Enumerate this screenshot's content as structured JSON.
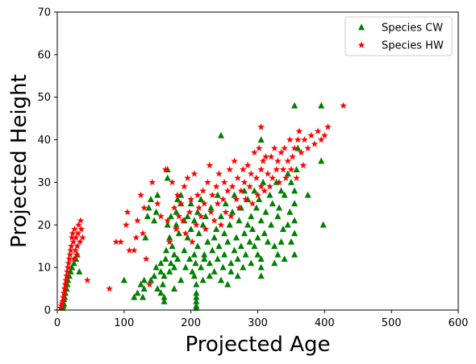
{
  "chart_data": {
    "type": "scatter",
    "title": "",
    "xlabel": "Projected Age",
    "ylabel": "Projected Height",
    "xlim": [
      0,
      600
    ],
    "ylim": [
      0,
      70
    ],
    "xticks": [
      "0",
      "100",
      "200",
      "300",
      "400",
      "500",
      "600"
    ],
    "yticks": [
      "0",
      "10",
      "20",
      "30",
      "40",
      "50",
      "60",
      "70"
    ],
    "grid": false,
    "legend_position": "top-right",
    "series": [
      {
        "name": "Species CW",
        "marker": "triangle",
        "color": "#008000",
        "points": [
          [
            8,
            0.5
          ],
          [
            9,
            1
          ],
          [
            10,
            1.5
          ],
          [
            10,
            2.5
          ],
          [
            11,
            3
          ],
          [
            12,
            4
          ],
          [
            14,
            5
          ],
          [
            15,
            6
          ],
          [
            16,
            7
          ],
          [
            18,
            8
          ],
          [
            20,
            9
          ],
          [
            22,
            10
          ],
          [
            25,
            11
          ],
          [
            28,
            12
          ],
          [
            30,
            13
          ],
          [
            33,
            9
          ],
          [
            100,
            7
          ],
          [
            115,
            3
          ],
          [
            120,
            4
          ],
          [
            125,
            6
          ],
          [
            128,
            3
          ],
          [
            130,
            5
          ],
          [
            130,
            7
          ],
          [
            132,
            17
          ],
          [
            135,
            22
          ],
          [
            137,
            24
          ],
          [
            140,
            7
          ],
          [
            140,
            26
          ],
          [
            145,
            8
          ],
          [
            145,
            21
          ],
          [
            148,
            10
          ],
          [
            148,
            23
          ],
          [
            150,
            5
          ],
          [
            150,
            27
          ],
          [
            155,
            4
          ],
          [
            155,
            9
          ],
          [
            155,
            11
          ],
          [
            158,
            6
          ],
          [
            160,
            8
          ],
          [
            160,
            2
          ],
          [
            160,
            3
          ],
          [
            162,
            12
          ],
          [
            163,
            14
          ],
          [
            165,
            20
          ],
          [
            165,
            31
          ],
          [
            165,
            33
          ],
          [
            168,
            9
          ],
          [
            168,
            17
          ],
          [
            170,
            11
          ],
          [
            170,
            22
          ],
          [
            172,
            15
          ],
          [
            175,
            5
          ],
          [
            175,
            10
          ],
          [
            175,
            13
          ],
          [
            178,
            20
          ],
          [
            178,
            23
          ],
          [
            180,
            12
          ],
          [
            180,
            26
          ],
          [
            182,
            18
          ],
          [
            185,
            7
          ],
          [
            185,
            25
          ],
          [
            185,
            27
          ],
          [
            190,
            14
          ],
          [
            190,
            21
          ],
          [
            192,
            10
          ],
          [
            195,
            17
          ],
          [
            195,
            22
          ],
          [
            198,
            12
          ],
          [
            200,
            19
          ],
          [
            200,
            25
          ],
          [
            202,
            9
          ],
          [
            205,
            13
          ],
          [
            205,
            8
          ],
          [
            205,
            21
          ],
          [
            207,
            11
          ],
          [
            208,
            3
          ],
          [
            208,
            2
          ],
          [
            208,
            1
          ],
          [
            208,
            4
          ],
          [
            208,
            0.5
          ],
          [
            208,
            6
          ],
          [
            210,
            15
          ],
          [
            210,
            23
          ],
          [
            212,
            18
          ],
          [
            215,
            10
          ],
          [
            215,
            26
          ],
          [
            218,
            7
          ],
          [
            218,
            20
          ],
          [
            220,
            12
          ],
          [
            220,
            13
          ],
          [
            222,
            22
          ],
          [
            225,
            16
          ],
          [
            228,
            8
          ],
          [
            228,
            11
          ],
          [
            230,
            24
          ],
          [
            232,
            14
          ],
          [
            235,
            17
          ],
          [
            235,
            9
          ],
          [
            238,
            19
          ],
          [
            240,
            12
          ],
          [
            240,
            27
          ],
          [
            242,
            15
          ],
          [
            245,
            41
          ],
          [
            245,
            7
          ],
          [
            245,
            22
          ],
          [
            248,
            10
          ],
          [
            250,
            13
          ],
          [
            250,
            18
          ],
          [
            252,
            25
          ],
          [
            255,
            16
          ],
          [
            255,
            6
          ],
          [
            258,
            20
          ],
          [
            260,
            11
          ],
          [
            260,
            9
          ],
          [
            262,
            23
          ],
          [
            265,
            14
          ],
          [
            265,
            27
          ],
          [
            268,
            17
          ],
          [
            270,
            8
          ],
          [
            270,
            12
          ],
          [
            272,
            21
          ],
          [
            275,
            15
          ],
          [
            275,
            24
          ],
          [
            278,
            10
          ],
          [
            280,
            18
          ],
          [
            280,
            28
          ],
          [
            282,
            13
          ],
          [
            285,
            20
          ],
          [
            285,
            26
          ],
          [
            288,
            16
          ],
          [
            290,
            11
          ],
          [
            290,
            22
          ],
          [
            292,
            19
          ],
          [
            295,
            15
          ],
          [
            295,
            28
          ],
          [
            298,
            24
          ],
          [
            300,
            17
          ],
          [
            300,
            13
          ],
          [
            302,
            26
          ],
          [
            305,
            40
          ],
          [
            305,
            8
          ],
          [
            305,
            10
          ],
          [
            305,
            12
          ],
          [
            305,
            21
          ],
          [
            308,
            30
          ],
          [
            310,
            18
          ],
          [
            312,
            23
          ],
          [
            315,
            16
          ],
          [
            318,
            27
          ],
          [
            320,
            20
          ],
          [
            322,
            25
          ],
          [
            325,
            15
          ],
          [
            325,
            11
          ],
          [
            328,
            30
          ],
          [
            330,
            13
          ],
          [
            330,
            22
          ],
          [
            332,
            24
          ],
          [
            335,
            16
          ],
          [
            335,
            28
          ],
          [
            338,
            19
          ],
          [
            340,
            12
          ],
          [
            340,
            27
          ],
          [
            345,
            20
          ],
          [
            345,
            32
          ],
          [
            348,
            23
          ],
          [
            350,
            16
          ],
          [
            350,
            30
          ],
          [
            355,
            48
          ],
          [
            355,
            13
          ],
          [
            355,
            18
          ],
          [
            355,
            21
          ],
          [
            355,
            25
          ],
          [
            355,
            28
          ],
          [
            358,
            33
          ],
          [
            360,
            38
          ],
          [
            375,
            27
          ],
          [
            395,
            48
          ],
          [
            395,
            35
          ],
          [
            398,
            20
          ]
        ]
      },
      {
        "name": "Species HW",
        "marker": "star",
        "color": "#ff0000",
        "points": [
          [
            5,
            0.5
          ],
          [
            6,
            1
          ],
          [
            7,
            1.5
          ],
          [
            8,
            2
          ],
          [
            9,
            3
          ],
          [
            10,
            4
          ],
          [
            11,
            5
          ],
          [
            12,
            6
          ],
          [
            13,
            7
          ],
          [
            14,
            8
          ],
          [
            15,
            9
          ],
          [
            16,
            10
          ],
          [
            17,
            11
          ],
          [
            18,
            12
          ],
          [
            19,
            13
          ],
          [
            20,
            14
          ],
          [
            21,
            15
          ],
          [
            22,
            17
          ],
          [
            23,
            18
          ],
          [
            24,
            16
          ],
          [
            25,
            12
          ],
          [
            26,
            19
          ],
          [
            27,
            14
          ],
          [
            28,
            17
          ],
          [
            29,
            13
          ],
          [
            30,
            15
          ],
          [
            31,
            18
          ],
          [
            32,
            20
          ],
          [
            34,
            16
          ],
          [
            35,
            21
          ],
          [
            36,
            19
          ],
          [
            38,
            17
          ],
          [
            45,
            7
          ],
          [
            78,
            5
          ],
          [
            88,
            16
          ],
          [
            95,
            16
          ],
          [
            103,
            20
          ],
          [
            105,
            23
          ],
          [
            108,
            14
          ],
          [
            115,
            14
          ],
          [
            118,
            17
          ],
          [
            120,
            21
          ],
          [
            125,
            27
          ],
          [
            128,
            18
          ],
          [
            130,
            24
          ],
          [
            133,
            12
          ],
          [
            138,
            6
          ],
          [
            142,
            30
          ],
          [
            150,
            25
          ],
          [
            155,
            22
          ],
          [
            162,
            33
          ],
          [
            165,
            21
          ],
          [
            168,
            16
          ],
          [
            172,
            30
          ],
          [
            175,
            24
          ],
          [
            178,
            19
          ],
          [
            180,
            27
          ],
          [
            182,
            22
          ],
          [
            185,
            25
          ],
          [
            188,
            21
          ],
          [
            190,
            29
          ],
          [
            192,
            18
          ],
          [
            195,
            31
          ],
          [
            198,
            23
          ],
          [
            200,
            26
          ],
          [
            202,
            16
          ],
          [
            205,
            32
          ],
          [
            208,
            20
          ],
          [
            210,
            27
          ],
          [
            212,
            24
          ],
          [
            215,
            22
          ],
          [
            218,
            28
          ],
          [
            220,
            25
          ],
          [
            222,
            19
          ],
          [
            225,
            30
          ],
          [
            228,
            34
          ],
          [
            230,
            23
          ],
          [
            232,
            27
          ],
          [
            235,
            21
          ],
          [
            238,
            29
          ],
          [
            240,
            25
          ],
          [
            242,
            32
          ],
          [
            245,
            20
          ],
          [
            248,
            26
          ],
          [
            250,
            30
          ],
          [
            252,
            23
          ],
          [
            255,
            28
          ],
          [
            258,
            33
          ],
          [
            260,
            22
          ],
          [
            262,
            29
          ],
          [
            265,
            35
          ],
          [
            268,
            26
          ],
          [
            270,
            31
          ],
          [
            272,
            24
          ],
          [
            275,
            28
          ],
          [
            278,
            33
          ],
          [
            280,
            30
          ],
          [
            282,
            26
          ],
          [
            285,
            34
          ],
          [
            288,
            29
          ],
          [
            290,
            32
          ],
          [
            292,
            25
          ],
          [
            295,
            37
          ],
          [
            298,
            31
          ],
          [
            300,
            27
          ],
          [
            302,
            38
          ],
          [
            305,
            43
          ],
          [
            305,
            33
          ],
          [
            305,
            29
          ],
          [
            308,
            35
          ],
          [
            310,
            28
          ],
          [
            312,
            36
          ],
          [
            315,
            32
          ],
          [
            318,
            29
          ],
          [
            320,
            36
          ],
          [
            322,
            31
          ],
          [
            325,
            38
          ],
          [
            328,
            33
          ],
          [
            330,
            35
          ],
          [
            332,
            30
          ],
          [
            335,
            37
          ],
          [
            338,
            33
          ],
          [
            340,
            38
          ],
          [
            342,
            31
          ],
          [
            345,
            35
          ],
          [
            348,
            40
          ],
          [
            350,
            33
          ],
          [
            352,
            36
          ],
          [
            355,
            38
          ],
          [
            358,
            31
          ],
          [
            360,
            40
          ],
          [
            362,
            42
          ],
          [
            365,
            37
          ],
          [
            368,
            34
          ],
          [
            370,
            40
          ],
          [
            375,
            38
          ],
          [
            380,
            41
          ],
          [
            385,
            39
          ],
          [
            390,
            42
          ],
          [
            395,
            40
          ],
          [
            400,
            41
          ],
          [
            405,
            43
          ],
          [
            428,
            48
          ]
        ]
      }
    ]
  }
}
